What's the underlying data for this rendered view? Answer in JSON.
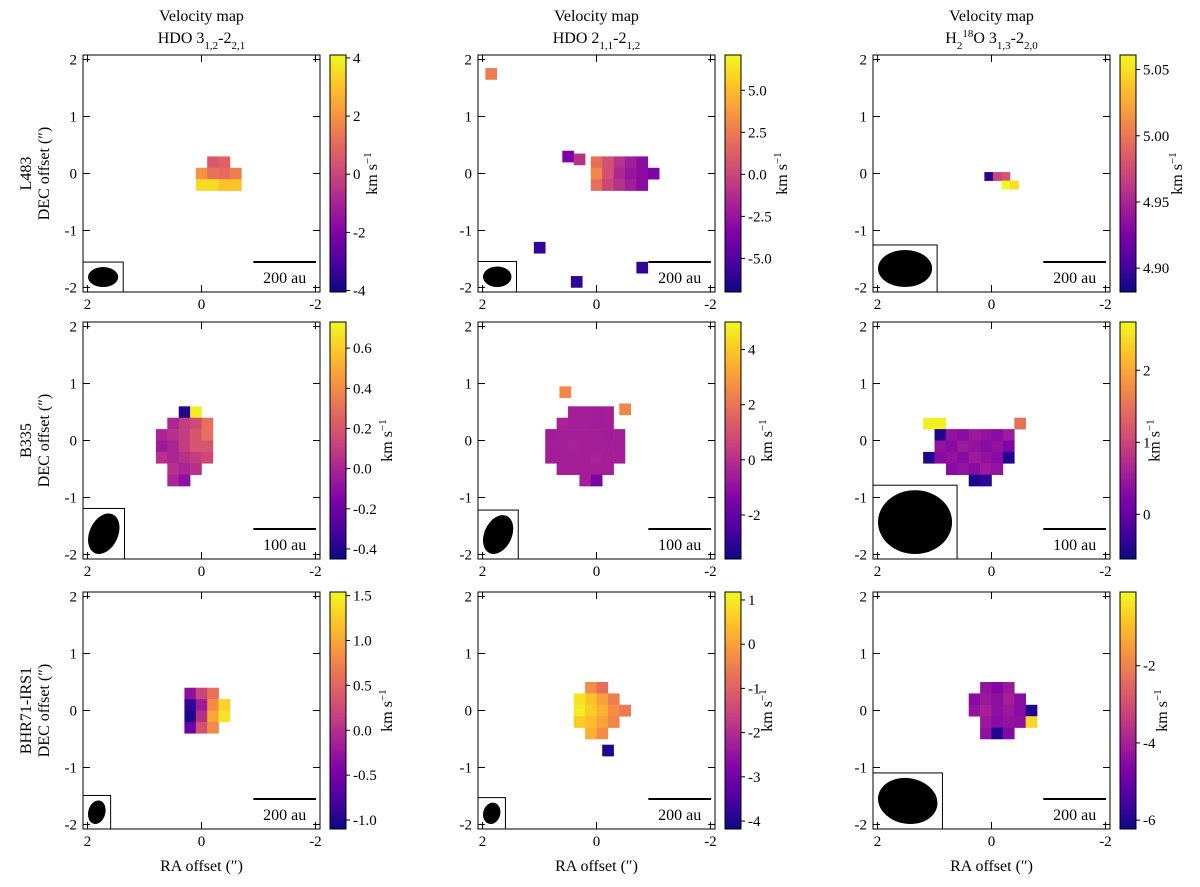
{
  "chart_data": [
    {
      "type": "heatmap",
      "title": "Velocity map",
      "subtitle": [
        {
          "text": "HDO 3"
        },
        {
          "text": "1,2",
          "shift": "sub"
        },
        {
          "text": "-2"
        },
        {
          "text": "2,1",
          "shift": "sub"
        }
      ],
      "row_label": "L483",
      "ylabel": "DEC offset (″)",
      "xlim": [
        2.08,
        -2.08
      ],
      "ylim": [
        -2.08,
        2.08
      ],
      "xticks": [
        2,
        0,
        -2
      ],
      "yticks": [
        -2,
        -1,
        0,
        1,
        2
      ],
      "colormap": "plasma",
      "clim": [
        -4.05,
        4.1
      ],
      "cticks": [
        -4,
        -2,
        0,
        2,
        4
      ],
      "cbar_label": [
        {
          "text": "km s"
        },
        {
          "text": "−1",
          "shift": "super"
        }
      ],
      "cell": 0.2,
      "x": [
        -0.2,
        -0.4,
        0,
        -0.2,
        -0.4,
        -0.6,
        0,
        -0.2,
        -0.4,
        -0.6
      ],
      "y": [
        0.2,
        0.2,
        0,
        0,
        0,
        0,
        -0.2,
        -0.2,
        -0.2,
        -0.2
      ],
      "values": [
        0.5,
        0.8,
        2,
        1.2,
        1,
        1.5,
        3.5,
        3.5,
        3,
        3
      ],
      "beam": {
        "width": 0.53,
        "height": 0.35,
        "angle": 0
      },
      "scalebar": {
        "label": "200 au",
        "length": 1.1
      }
    },
    {
      "type": "heatmap",
      "title": "Velocity map",
      "subtitle": [
        {
          "text": "HDO 2"
        },
        {
          "text": "1,1",
          "shift": "sub"
        },
        {
          "text": "-2"
        },
        {
          "text": "1,2",
          "shift": "sub"
        }
      ],
      "xlim": [
        2.08,
        -2.08
      ],
      "ylim": [
        -2.08,
        2.08
      ],
      "xticks": [
        2,
        0,
        -2
      ],
      "yticks": [
        -2,
        -1,
        0,
        1,
        2
      ],
      "colormap": "plasma",
      "clim": [
        -7,
        7.1
      ],
      "cticks": [
        {
          "value": -5,
          "label": "-5.0"
        },
        -2.5,
        {
          "value": 0,
          "label": "0.0"
        },
        2.5,
        {
          "value": 5,
          "label": "5.0"
        }
      ],
      "cbar_label": [
        {
          "text": "km s"
        },
        {
          "text": "−1",
          "shift": "super"
        }
      ],
      "cell": 0.2,
      "x": [
        0,
        -0.2,
        -0.4,
        -0.6,
        -0.8,
        0,
        -0.2,
        -0.4,
        -0.6,
        -0.8,
        -1.0,
        0,
        -0.2,
        -0.4,
        -0.6,
        -0.8,
        1.85,
        0.5,
        0.3,
        1.0,
        -0.8,
        0.35
      ],
      "y": [
        0.2,
        0.2,
        0.2,
        0.2,
        0.2,
        0,
        0,
        0,
        0,
        0,
        0,
        -0.2,
        -0.2,
        -0.2,
        -0.2,
        -0.2,
        1.75,
        0.3,
        0.25,
        -1.3,
        -1.65,
        -1.9
      ],
      "values": [
        2,
        0.5,
        -1,
        -2,
        -3,
        3,
        0.5,
        -1.5,
        -2.5,
        -3,
        -3.5,
        2,
        0,
        -1,
        -2,
        -3,
        2.5,
        -3.5,
        -1,
        -6,
        -6,
        -6
      ],
      "beam": {
        "width": 0.5,
        "height": 0.36,
        "angle": 0
      },
      "scalebar": {
        "label": "200 au",
        "length": 1.1
      }
    },
    {
      "type": "heatmap",
      "title": "Velocity map",
      "subtitle": [
        {
          "text": "H"
        },
        {
          "text": "2",
          "shift": "sub"
        },
        {
          "text": "18",
          "shift": "super"
        },
        {
          "text": "O 3"
        },
        {
          "text": "1,3",
          "shift": "sub"
        },
        {
          "text": "-2"
        },
        {
          "text": "2,0",
          "shift": "sub"
        }
      ],
      "xlim": [
        2.08,
        -2.08
      ],
      "ylim": [
        -2.08,
        2.08
      ],
      "xticks": [
        2,
        0,
        -2
      ],
      "yticks": [
        -2,
        -1,
        0,
        1,
        2
      ],
      "colormap": "plasma",
      "clim": [
        4.882,
        5.061
      ],
      "cticks": [
        {
          "value": 4.9,
          "label": "4.90"
        },
        4.95,
        {
          "value": 5,
          "label": "5.00"
        },
        5.05
      ],
      "cbar_label": [
        {
          "text": "km s"
        },
        {
          "text": "−1",
          "shift": "super"
        }
      ],
      "cell": 0.15,
      "x": [
        0.05,
        -0.1,
        -0.25,
        -0.25,
        -0.4
      ],
      "y": [
        -0.05,
        -0.05,
        -0.05,
        -0.2,
        -0.2
      ],
      "values": [
        4.89,
        4.97,
        4.98,
        5.06,
        5.05
      ],
      "beam": {
        "width": 0.95,
        "height": 0.65,
        "angle": 0
      },
      "scalebar": {
        "label": "200 au",
        "length": 1.1
      }
    },
    {
      "type": "heatmap",
      "row_label": "B335",
      "ylabel": "DEC offset (″)",
      "xlim": [
        2.08,
        -2.08
      ],
      "ylim": [
        -2.08,
        2.08
      ],
      "xticks": [
        2,
        0,
        -2
      ],
      "yticks": [
        -2,
        -1,
        0,
        1,
        2
      ],
      "colormap": "plasma",
      "clim": [
        -0.45,
        0.73
      ],
      "cticks": [
        -0.4,
        -0.2,
        {
          "value": 0,
          "label": "0.0"
        },
        0.2,
        0.4,
        0.6
      ],
      "cbar_label": [
        {
          "text": "km s"
        },
        {
          "text": "−1",
          "shift": "super"
        }
      ],
      "cell": 0.2,
      "x": [
        0.3,
        0.1,
        0.5,
        0.3,
        0.1,
        -0.1,
        0.7,
        0.5,
        0.3,
        0.1,
        -0.1,
        0.7,
        0.5,
        0.3,
        0.1,
        -0.1,
        0.7,
        0.5,
        0.3,
        0.1,
        -0.1,
        0.5,
        0.3,
        0.1,
        0.5,
        0.3
      ],
      "y": [
        0.5,
        0.5,
        0.3,
        0.3,
        0.3,
        0.3,
        0.1,
        0.1,
        0.1,
        0.1,
        0.1,
        -0.1,
        -0.1,
        -0.1,
        -0.1,
        -0.1,
        -0.3,
        -0.3,
        -0.3,
        -0.3,
        -0.3,
        -0.5,
        -0.5,
        -0.5,
        -0.7,
        -0.7
      ],
      "values": [
        -0.4,
        0.7,
        0.0,
        0.1,
        0.15,
        0.3,
        0.0,
        0.05,
        0.1,
        0.2,
        0.3,
        -0.05,
        0.0,
        0.1,
        0.2,
        0.2,
        0.05,
        0.0,
        0.05,
        0.1,
        0.15,
        0.05,
        0.0,
        0.05,
        0.0,
        -0.1
      ],
      "beam": {
        "width": 0.5,
        "height": 0.75,
        "angle": 25
      },
      "scalebar": {
        "label": "100 au",
        "length": 1.1
      }
    },
    {
      "type": "heatmap",
      "xlim": [
        2.08,
        -2.08
      ],
      "ylim": [
        -2.08,
        2.08
      ],
      "xticks": [
        2,
        0,
        -2
      ],
      "yticks": [
        -2,
        -1,
        0,
        1,
        2
      ],
      "colormap": "plasma",
      "clim": [
        -3.6,
        5.0
      ],
      "cticks": [
        -2,
        0,
        2,
        4
      ],
      "cbar_label": [
        {
          "text": "km s"
        },
        {
          "text": "−1",
          "shift": "super"
        }
      ],
      "cell": 0.2,
      "x": [
        0.4,
        0.2,
        0,
        -0.2,
        0.6,
        0.4,
        0.2,
        0,
        -0.2,
        0.8,
        0.6,
        0.4,
        0.2,
        0,
        -0.2,
        -0.4,
        0.8,
        0.6,
        0.4,
        0.2,
        0,
        -0.2,
        -0.4,
        0.8,
        0.6,
        0.4,
        0.2,
        0,
        -0.2,
        -0.4,
        0.6,
        0.4,
        0.2,
        0,
        -0.2,
        0.2,
        0,
        0.55,
        -0.5
      ],
      "y": [
        0.5,
        0.5,
        0.5,
        0.5,
        0.3,
        0.3,
        0.3,
        0.3,
        0.3,
        0.1,
        0.1,
        0.1,
        0.1,
        0.1,
        0.1,
        0.1,
        -0.1,
        -0.1,
        -0.1,
        -0.1,
        -0.1,
        -0.1,
        -0.1,
        -0.3,
        -0.3,
        -0.3,
        -0.3,
        -0.3,
        -0.3,
        -0.3,
        -0.5,
        -0.5,
        -0.5,
        -0.5,
        -0.5,
        -0.7,
        -0.7,
        0.85,
        0.55
      ],
      "values": [
        -0.5,
        -0.5,
        -0.6,
        -0.5,
        -0.4,
        -0.5,
        -0.5,
        -0.6,
        -0.5,
        -0.6,
        -0.5,
        -0.5,
        -0.5,
        -0.5,
        -0.6,
        -0.5,
        -0.5,
        -0.5,
        -0.4,
        -0.5,
        -0.5,
        -0.5,
        -0.6,
        -0.6,
        -0.5,
        -0.5,
        -0.5,
        -0.4,
        -0.5,
        -0.5,
        -0.5,
        -0.5,
        -0.5,
        -0.5,
        -0.5,
        -0.5,
        -1.5,
        2.5,
        2.5
      ],
      "beam": {
        "width": 0.48,
        "height": 0.72,
        "angle": 25
      },
      "scalebar": {
        "label": "100 au",
        "length": 1.1
      }
    },
    {
      "type": "heatmap",
      "xlim": [
        2.08,
        -2.08
      ],
      "ylim": [
        -2.08,
        2.08
      ],
      "xticks": [
        2,
        0,
        -2
      ],
      "yticks": [
        -2,
        -1,
        0,
        1,
        2
      ],
      "colormap": "plasma",
      "clim": [
        -0.62,
        2.67
      ],
      "cticks": [
        0,
        1,
        2
      ],
      "cbar_label": [
        {
          "text": "km s"
        },
        {
          "text": "−1",
          "shift": "super"
        }
      ],
      "cell": 0.2,
      "x": [
        1.1,
        0.9,
        -0.5,
        0.9,
        0.7,
        0.5,
        0.3,
        0.1,
        -0.1,
        -0.3,
        0.9,
        0.7,
        0.5,
        0.3,
        0.1,
        -0.1,
        -0.3,
        1.1,
        0.9,
        0.7,
        0.5,
        0.3,
        0.1,
        -0.1,
        -0.3,
        0.7,
        0.5,
        0.3,
        0.1,
        -0.1,
        0.3,
        0.1
      ],
      "y": [
        0.3,
        0.3,
        0.3,
        0.1,
        0.1,
        0.1,
        0.1,
        0.1,
        0.1,
        0.1,
        -0.1,
        -0.1,
        -0.1,
        -0.1,
        -0.1,
        -0.1,
        -0.1,
        -0.3,
        -0.3,
        -0.3,
        -0.3,
        -0.3,
        -0.3,
        -0.3,
        -0.3,
        -0.5,
        -0.5,
        -0.5,
        -0.5,
        -0.5,
        -0.7,
        -0.7
      ],
      "values": [
        2.6,
        2.6,
        1.5,
        -0.5,
        0.4,
        0.3,
        0.5,
        0.4,
        0.3,
        0.5,
        0.4,
        0.3,
        0.5,
        0.4,
        0.3,
        0.4,
        0.2,
        -0.5,
        0.3,
        0.4,
        0.3,
        0.5,
        0.4,
        0.3,
        -0.5,
        0.3,
        0.4,
        0.3,
        0.5,
        0.4,
        -0.5,
        -0.4
      ],
      "beam": {
        "width": 1.3,
        "height": 1.12,
        "angle": 0
      },
      "scalebar": {
        "label": "100 au",
        "length": 1.1
      }
    },
    {
      "type": "heatmap",
      "row_label": "BHR71-IRS1",
      "ylabel": "DEC offset (″)",
      "xlabel": "RA offset (″)",
      "xlim": [
        2.08,
        -2.08
      ],
      "ylim": [
        -2.08,
        2.08
      ],
      "xticks": [
        2,
        0,
        -2
      ],
      "yticks": [
        -2,
        -1,
        0,
        1,
        2
      ],
      "colormap": "plasma",
      "clim": [
        -1.1,
        1.54
      ],
      "cticks": [
        {
          "value": -1,
          "label": "-1.0"
        },
        -0.5,
        {
          "value": 0,
          "label": "0.0"
        },
        0.5,
        {
          "value": 1,
          "label": "1.0"
        },
        1.5
      ],
      "cbar_label": [
        {
          "text": "km s"
        },
        {
          "text": "−1",
          "shift": "super"
        }
      ],
      "cell": 0.2,
      "x": [
        0.2,
        0,
        -0.2,
        0.2,
        0,
        -0.2,
        -0.4,
        0.2,
        0,
        -0.2,
        -0.4,
        0.2,
        0,
        -0.2
      ],
      "y": [
        0.3,
        0.3,
        0.3,
        0.1,
        0.1,
        0.1,
        0.1,
        -0.1,
        -0.1,
        -0.1,
        -0.1,
        -0.3,
        -0.3,
        -0.3
      ],
      "values": [
        -0.3,
        0.2,
        0.6,
        -0.9,
        -0.2,
        0.8,
        1.3,
        -1.0,
        0.0,
        1.0,
        1.4,
        -0.6,
        0.3,
        0.8
      ],
      "beam": {
        "width": 0.3,
        "height": 0.42,
        "angle": 15
      },
      "scalebar": {
        "label": "200 au",
        "length": 1.1
      }
    },
    {
      "type": "heatmap",
      "xlabel": "RA offset (″)",
      "xlim": [
        2.08,
        -2.08
      ],
      "ylim": [
        -2.08,
        2.08
      ],
      "xticks": [
        2,
        0,
        -2
      ],
      "yticks": [
        -2,
        -1,
        0,
        1,
        2
      ],
      "colormap": "plasma",
      "clim": [
        -4.18,
        1.18
      ],
      "cticks": [
        -4,
        -3,
        -2,
        -1,
        0,
        1
      ],
      "cbar_label": [
        {
          "text": "km s"
        },
        {
          "text": "−1",
          "shift": "super"
        }
      ],
      "cell": 0.2,
      "x": [
        0.1,
        -0.1,
        0.3,
        0.1,
        -0.1,
        -0.3,
        0.3,
        0.1,
        -0.1,
        -0.3,
        -0.5,
        0.3,
        0.1,
        -0.1,
        -0.3,
        0.1,
        -0.1,
        -0.2
      ],
      "y": [
        0.4,
        0.4,
        0.2,
        0.2,
        0.2,
        0.2,
        0,
        0,
        0,
        0,
        0,
        -0.2,
        -0.2,
        -0.2,
        -0.2,
        -0.4,
        -0.4,
        -0.7
      ],
      "values": [
        -0.3,
        -0.8,
        0.9,
        0.5,
        0.0,
        -0.5,
        1.0,
        0.6,
        0.2,
        -0.3,
        -0.6,
        0.6,
        0.4,
        0.0,
        -0.4,
        0.2,
        -0.3,
        -4
      ],
      "beam": {
        "width": 0.3,
        "height": 0.38,
        "angle": 15
      },
      "scalebar": {
        "label": "200 au",
        "length": 1.1
      }
    },
    {
      "type": "heatmap",
      "xlabel": "RA offset (″)",
      "xlim": [
        2.08,
        -2.08
      ],
      "ylim": [
        -2.08,
        2.08
      ],
      "xticks": [
        2,
        0,
        -2
      ],
      "yticks": [
        -2,
        -1,
        0,
        1,
        2
      ],
      "colormap": "plasma",
      "clim": [
        -6.23,
        -0.09
      ],
      "cticks": [
        -6,
        -4,
        -2
      ],
      "cbar_label": [
        {
          "text": "km s"
        },
        {
          "text": "−1",
          "shift": "super"
        }
      ],
      "cell": 0.2,
      "x": [
        0.1,
        -0.1,
        -0.3,
        0.3,
        0.1,
        -0.1,
        -0.3,
        -0.5,
        0.3,
        0.1,
        -0.1,
        -0.3,
        -0.5,
        -0.7,
        0.1,
        -0.1,
        -0.3,
        -0.5,
        -0.7,
        0.1,
        -0.1,
        -0.3
      ],
      "y": [
        0.4,
        0.4,
        0.4,
        0.2,
        0.2,
        0.2,
        0.2,
        0.2,
        0,
        0,
        0,
        0,
        0,
        0,
        -0.2,
        -0.2,
        -0.2,
        -0.2,
        -0.2,
        -0.4,
        -0.4,
        -0.4
      ],
      "values": [
        -4.3,
        -4.6,
        -4.2,
        -4.5,
        -4.2,
        -4.4,
        -4.0,
        -4.5,
        -4.3,
        -4.0,
        -4.4,
        -4.2,
        -4.5,
        -6.0,
        -4.2,
        -4.5,
        -4.3,
        -4.4,
        -0.6,
        -4.4,
        -6.0,
        -4.6
      ],
      "beam": {
        "width": 1.05,
        "height": 0.8,
        "angle": 10
      },
      "scalebar": {
        "label": "200 au",
        "length": 1.1
      }
    }
  ]
}
